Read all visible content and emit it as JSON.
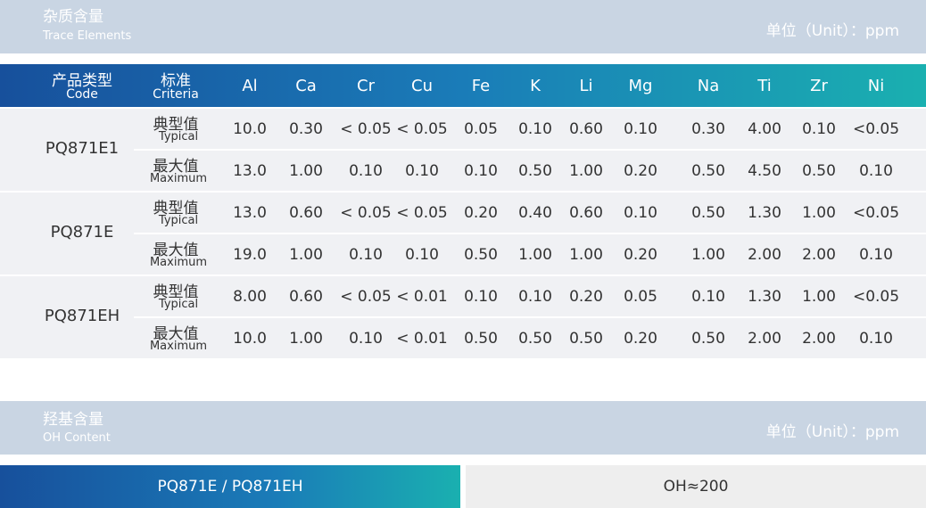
{
  "trace": {
    "title": "杂质含量",
    "subtitle": "Trace Elements",
    "unit": "单位（Unit）：ppm",
    "header": {
      "code": "产品类型",
      "code_en": "Code",
      "criteria": "标准",
      "criteria_en": "Criteria",
      "elements": [
        "Al",
        "Ca",
        "Cr",
        "Cu",
        "Fe",
        "K",
        "Li",
        "Mg",
        "Na",
        "Ti",
        "Zr",
        "Ni"
      ]
    },
    "rows": [
      {
        "code": "PQ871E1",
        "criteria": [
          {
            "label": "典型值",
            "label_en": "Typical",
            "values": [
              "10.0",
              "0.30",
              "< 0.05",
              "< 0.05",
              "0.05",
              "0.10",
              "0.60",
              "0.10",
              "0.30",
              "4.00",
              "0.10",
              "<0.05"
            ]
          },
          {
            "label": "最大值",
            "label_en": "Maximum",
            "values": [
              "13.0",
              "1.00",
              "0.10",
              "0.10",
              "0.10",
              "0.50",
              "1.00",
              "0.20",
              "0.50",
              "4.50",
              "0.50",
              "0.10"
            ]
          }
        ]
      },
      {
        "code": "PQ871E",
        "criteria": [
          {
            "label": "典型值",
            "label_en": "Typical",
            "values": [
              "13.0",
              "0.60",
              "< 0.05",
              "< 0.05",
              "0.20",
              "0.40",
              "0.60",
              "0.10",
              "0.50",
              "1.30",
              "1.00",
              "<0.05"
            ]
          },
          {
            "label": "最大值",
            "label_en": "Maximum",
            "values": [
              "19.0",
              "1.00",
              "0.10",
              "0.10",
              "0.50",
              "1.00",
              "1.00",
              "0.20",
              "1.00",
              "2.00",
              "2.00",
              "0.10"
            ]
          }
        ]
      },
      {
        "code": "PQ871EH",
        "criteria": [
          {
            "label": "典型值",
            "label_en": "Typical",
            "values": [
              "8.00",
              "0.60",
              "< 0.05",
              "< 0.01",
              "0.10",
              "0.10",
              "0.20",
              "0.05",
              "0.10",
              "1.30",
              "1.00",
              "<0.05"
            ]
          },
          {
            "label": "最大值",
            "label_en": "Maximum",
            "values": [
              "10.0",
              "1.00",
              "0.10",
              "< 0.01",
              "0.50",
              "0.50",
              "0.50",
              "0.20",
              "0.50",
              "2.00",
              "2.00",
              "0.10"
            ]
          }
        ]
      }
    ]
  },
  "oh": {
    "title": "羟基含量",
    "subtitle": "OH Content",
    "unit": "单位（Unit）：ppm",
    "product": "PQ871E / PQ871EH",
    "value": "OH≈200"
  }
}
